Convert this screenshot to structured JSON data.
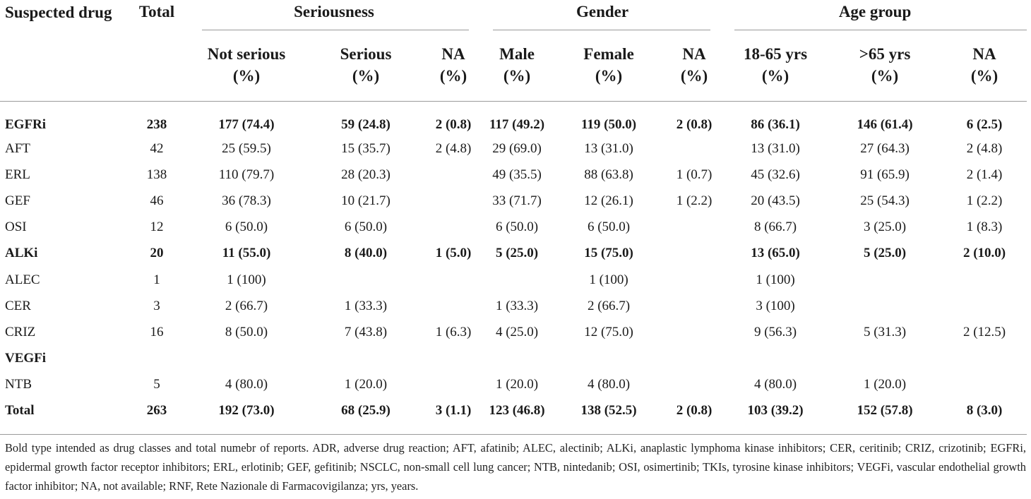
{
  "header": {
    "drug": "Suspected drug",
    "total": "Total",
    "groups": {
      "seriousness": "Seriousness",
      "gender": "Gender",
      "age": "Age group"
    },
    "sub": [
      {
        "line1": "Not serious",
        "line2": "(%)"
      },
      {
        "line1": "Serious",
        "line2": "(%)"
      },
      {
        "line1": "NA",
        "line2": "(%)"
      },
      {
        "line1": "Male",
        "line2": "(%)"
      },
      {
        "line1": "Female",
        "line2": "(%)"
      },
      {
        "line1": "NA",
        "line2": "(%)"
      },
      {
        "line1": "18-65 yrs",
        "line2": "(%)"
      },
      {
        "line1": ">65 yrs",
        "line2": "(%)"
      },
      {
        "line1": "NA",
        "line2": "(%)"
      }
    ]
  },
  "rows": [
    {
      "bold": true,
      "cells": [
        "EGFRi",
        "238",
        "177 (74.4)",
        "59 (24.8)",
        "2 (0.8)",
        "117 (49.2)",
        "119 (50.0)",
        "2 (0.8)",
        "86 (36.1)",
        "146 (61.4)",
        "6 (2.5)"
      ]
    },
    {
      "bold": false,
      "cells": [
        "AFT",
        "42",
        "25 (59.5)",
        "15 (35.7)",
        "2 (4.8)",
        "29 (69.0)",
        "13 (31.0)",
        "",
        "13 (31.0)",
        "27 (64.3)",
        "2 (4.8)"
      ]
    },
    {
      "bold": false,
      "cells": [
        "ERL",
        "138",
        "110 (79.7)",
        "28 (20.3)",
        "",
        "49 (35.5)",
        "88 (63.8)",
        "1 (0.7)",
        "45 (32.6)",
        "91 (65.9)",
        "2 (1.4)"
      ]
    },
    {
      "bold": false,
      "cells": [
        "GEF",
        "46",
        "36 (78.3)",
        "10 (21.7)",
        "",
        "33 (71.7)",
        "12 (26.1)",
        "1 (2.2)",
        "20 (43.5)",
        "25 (54.3)",
        "1 (2.2)"
      ]
    },
    {
      "bold": false,
      "cells": [
        "OSI",
        "12",
        "6 (50.0)",
        "6 (50.0)",
        "",
        "6 (50.0)",
        "6 (50.0)",
        "",
        "8 (66.7)",
        "3 (25.0)",
        "1 (8.3)"
      ]
    },
    {
      "bold": true,
      "cells": [
        "ALKi",
        "20",
        "11 (55.0)",
        "8 (40.0)",
        "1 (5.0)",
        "5 (25.0)",
        "15 (75.0)",
        "",
        "13 (65.0)",
        "5 (25.0)",
        "2 (10.0)"
      ]
    },
    {
      "bold": false,
      "cells": [
        "ALEC",
        "1",
        "1 (100)",
        "",
        "",
        "",
        "1 (100)",
        "",
        "1 (100)",
        "",
        ""
      ]
    },
    {
      "bold": false,
      "cells": [
        "CER",
        "3",
        "2 (66.7)",
        "1 (33.3)",
        "",
        "1 (33.3)",
        "2 (66.7)",
        "",
        "3 (100)",
        "",
        ""
      ]
    },
    {
      "bold": false,
      "cells": [
        "CRIZ",
        "16",
        "8 (50.0)",
        "7 (43.8)",
        "1 (6.3)",
        "4 (25.0)",
        "12 (75.0)",
        "",
        "9 (56.3)",
        "5 (31.3)",
        "2 (12.5)"
      ]
    },
    {
      "bold": true,
      "cells": [
        "VEGFi",
        "",
        "",
        "",
        "",
        "",
        "",
        "",
        "",
        "",
        ""
      ]
    },
    {
      "bold": false,
      "cells": [
        "NTB",
        "5",
        "4 (80.0)",
        "1 (20.0)",
        "",
        "1 (20.0)",
        "4 (80.0)",
        "",
        "4 (80.0)",
        "1 (20.0)",
        ""
      ]
    },
    {
      "bold": true,
      "cells": [
        "Total",
        "263",
        "192 (73.0)",
        "68 (25.9)",
        "3 (1.1)",
        "123 (46.8)",
        "138 (52.5)",
        "2 (0.8)",
        "103 (39.2)",
        "152 (57.8)",
        "8 (3.0)"
      ]
    }
  ],
  "footnote": "Bold type intended as drug classes and total numebr of reports. ADR, adverse drug reaction; AFT, afatinib; ALEC, alectinib; ALKi, anaplastic lymphoma kinase inhibitors; CER, ceritinib; CRIZ, crizotinib; EGFRi, epidermal growth factor receptor inhibitors; ERL, erlotinib; GEF, gefitinib; NSCLC, non-small cell lung cancer; NTB, nintedanib; OSI, osimertinib; TKIs, tyrosine kinase inhibitors; VEGFi, vascular endothelial growth factor inhibitor; NA, not available; RNF, Rete Nazionale di Farmacovigilanza; yrs, years."
}
